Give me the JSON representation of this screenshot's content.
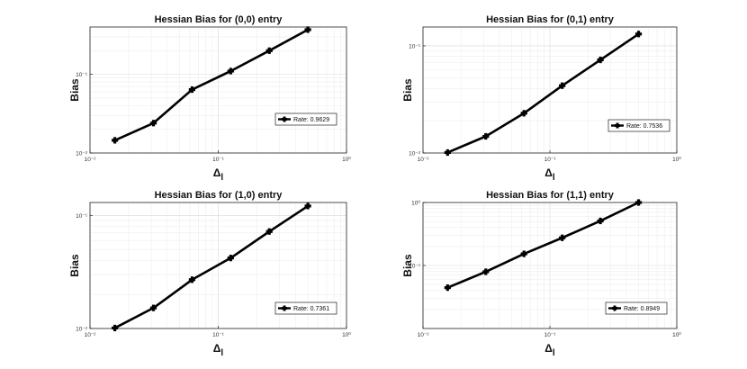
{
  "chart_data": [
    {
      "type": "line",
      "title": "Hessian Bias for (0,0) entry",
      "xlabel": "Δ_l",
      "ylabel": "Bias",
      "xscale": "log",
      "yscale": "log",
      "xlim": [
        0.01,
        1
      ],
      "ylim": [
        0.01,
        0.4
      ],
      "x_ticks": [
        0.01,
        0.1,
        1
      ],
      "x_tick_labels": [
        "10⁻²",
        "10⁻¹",
        "10⁰"
      ],
      "y_ticks": [
        0.01,
        0.1
      ],
      "y_tick_labels": [
        "10⁻²",
        "10⁻¹"
      ],
      "grid": true,
      "legend_position": "right",
      "series": [
        {
          "name": "Rate: 0.9629",
          "x": [
            0.015625,
            0.03125,
            0.0625,
            0.125,
            0.25,
            0.5
          ],
          "values": [
            0.0145,
            0.024,
            0.064,
            0.11,
            0.2,
            0.37
          ]
        }
      ]
    },
    {
      "type": "line",
      "title": "Hessian Bias for (0,1) entry",
      "xlabel": "Δ_l",
      "ylabel": "Bias",
      "xscale": "log",
      "yscale": "log",
      "xlim": [
        0.01,
        1
      ],
      "ylim": [
        0.01,
        0.15
      ],
      "x_ticks": [
        0.01,
        0.1,
        1
      ],
      "x_tick_labels": [
        "10⁻²",
        "10⁻¹",
        "10⁰"
      ],
      "y_ticks": [
        0.01,
        0.1
      ],
      "y_tick_labels": [
        "10⁻²",
        "10⁻¹"
      ],
      "grid": true,
      "legend_position": "right",
      "series": [
        {
          "name": "Rate: 0.7536",
          "x": [
            0.015625,
            0.03125,
            0.0625,
            0.125,
            0.25,
            0.5
          ],
          "values": [
            0.0101,
            0.0143,
            0.0235,
            0.0425,
            0.074,
            0.129
          ]
        }
      ]
    },
    {
      "type": "line",
      "title": "Hessian Bias for (1,0) entry",
      "xlabel": "Δ_l",
      "ylabel": "Bias",
      "xscale": "log",
      "yscale": "log",
      "xlim": [
        0.01,
        1
      ],
      "ylim": [
        0.01,
        0.13
      ],
      "x_ticks": [
        0.01,
        0.1,
        1
      ],
      "x_tick_labels": [
        "10⁻²",
        "10⁻¹",
        "10⁰"
      ],
      "y_ticks": [
        0.01,
        0.1
      ],
      "y_tick_labels": [
        "10⁻²",
        "10⁻¹"
      ],
      "grid": true,
      "legend_position": "right",
      "series": [
        {
          "name": "Rate: 0.7361",
          "x": [
            0.015625,
            0.03125,
            0.0625,
            0.125,
            0.25,
            0.5
          ],
          "values": [
            0.0101,
            0.0152,
            0.027,
            0.042,
            0.072,
            0.121
          ]
        }
      ]
    },
    {
      "type": "line",
      "title": "Hessian Bias for (1,1) entry",
      "xlabel": "Δ_l",
      "ylabel": "Bias",
      "xscale": "log",
      "yscale": "log",
      "xlim": [
        0.01,
        1
      ],
      "ylim": [
        0.01,
        1
      ],
      "x_ticks": [
        0.01,
        0.1,
        1
      ],
      "x_tick_labels": [
        "10⁻²",
        "10⁻¹",
        "10⁰"
      ],
      "y_ticks": [
        0.1,
        1
      ],
      "y_tick_labels": [
        "10⁻¹",
        "10⁰"
      ],
      "grid": true,
      "legend_position": "right",
      "series": [
        {
          "name": "Rate: 0.8949",
          "x": [
            0.015625,
            0.03125,
            0.0625,
            0.125,
            0.25,
            0.5
          ],
          "values": [
            0.0445,
            0.0795,
            0.153,
            0.275,
            0.51,
            1.0
          ]
        }
      ]
    }
  ]
}
